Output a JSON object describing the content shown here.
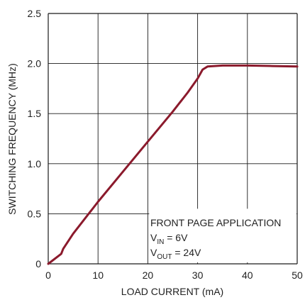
{
  "chart_data": {
    "type": "line",
    "title": "",
    "xlabel": "LOAD CURRENT (mA)",
    "ylabel": "SWITCHING FREQUENCY (MHz)",
    "xlim": [
      0,
      50
    ],
    "ylim": [
      0,
      2.5
    ],
    "grid": true,
    "x_ticks": [
      "0",
      "10",
      "20",
      "30",
      "40",
      "50"
    ],
    "y_ticks": [
      "0",
      "0.5",
      "1.0",
      "1.5",
      "2.0",
      "2.5"
    ],
    "series_color": "#8b1a2c",
    "series": [
      {
        "x": [
          0,
          2.6,
          3,
          5,
          10,
          15,
          20,
          25,
          28,
          30,
          31,
          32,
          35,
          40,
          45,
          50
        ],
        "values": [
          0,
          0.1,
          0.15,
          0.3,
          0.62,
          0.92,
          1.22,
          1.52,
          1.71,
          1.85,
          1.94,
          1.97,
          1.98,
          1.98,
          1.975,
          1.97
        ]
      }
    ],
    "annotation": {
      "line1": "FRONT PAGE APPLICATION",
      "line2_main": "V",
      "line2_sub": "IN",
      "line2_rest": " = 6V",
      "line3_main": "V",
      "line3_sub": "OUT",
      "line3_rest": " = 24V"
    }
  }
}
